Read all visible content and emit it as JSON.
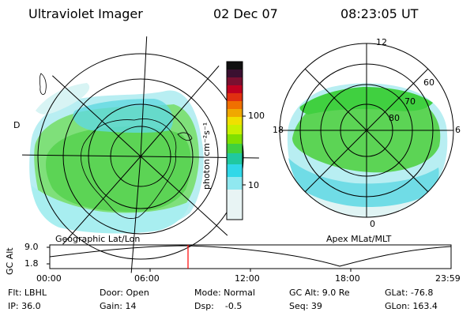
{
  "header": {
    "instrument": "Ultraviolet Imager",
    "date": "02 Dec 07",
    "time": "08:23:05 UT"
  },
  "colorbar": {
    "label": "photon cm⁻²s⁻¹",
    "ticks": [
      "100",
      "10"
    ],
    "colors": [
      "#101010",
      "#3a1030",
      "#7a1030",
      "#c00020",
      "#e03010",
      "#f07000",
      "#f0a800",
      "#f0e000",
      "#c8f000",
      "#80e000",
      "#40d040",
      "#20c8a0",
      "#30d8e8",
      "#90e8f0",
      "#e8f4f4"
    ]
  },
  "panels": {
    "left_label": "Geographic Lat/Lon",
    "right_label": "Apex MLat/MLT",
    "right_mlt": {
      "top": "12",
      "left": "18",
      "right": "6",
      "bottom": "0"
    },
    "right_mlat": [
      "60",
      "70",
      "80"
    ]
  },
  "altitude_plot": {
    "ylabel": "GC Alt",
    "y_ticks": [
      "9.0",
      "1.8"
    ],
    "x_ticks": [
      "00:00",
      "06:00",
      "12:00",
      "18:00",
      "23:59"
    ],
    "marker_color": "#ff0000"
  },
  "status": {
    "flt": "Flt: LBHL",
    "ip": "IP: 36.0",
    "door": "Door: Open",
    "gain": "Gain: 14",
    "mode": "Mode: Normal",
    "dsp": "Dsp:    -0.5",
    "gcalt": "GC Alt: 9.0 Re",
    "seq": "Seq: 39",
    "glat": "GLat: -76.8",
    "glon": "GLon: 163.4"
  }
}
